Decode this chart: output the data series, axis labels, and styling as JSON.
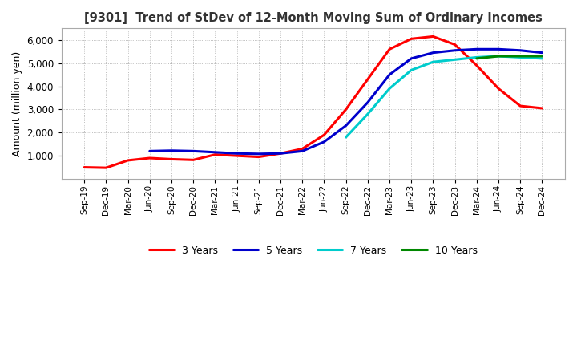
{
  "title": "[9301]  Trend of StDev of 12-Month Moving Sum of Ordinary Incomes",
  "ylabel": "Amount (million yen)",
  "ylim": [
    0,
    6500
  ],
  "yticks": [
    1000,
    2000,
    3000,
    4000,
    5000,
    6000
  ],
  "background_color": "#ffffff",
  "grid_color": "#aaaaaa",
  "x_labels": [
    "Sep-19",
    "Dec-19",
    "Mar-20",
    "Jun-20",
    "Sep-20",
    "Dec-20",
    "Mar-21",
    "Jun-21",
    "Sep-21",
    "Dec-21",
    "Mar-22",
    "Jun-22",
    "Sep-22",
    "Dec-22",
    "Mar-23",
    "Jun-23",
    "Sep-23",
    "Dec-23",
    "Mar-24",
    "Jun-24",
    "Sep-24",
    "Dec-24"
  ],
  "series": {
    "3 Years": {
      "color": "#ff0000",
      "values": [
        500,
        480,
        800,
        900,
        850,
        820,
        1050,
        1000,
        950,
        1100,
        1300,
        1900,
        3000,
        4300,
        5600,
        6050,
        6150,
        5800,
        4900,
        3900,
        3150,
        3050
      ]
    },
    "5 Years": {
      "color": "#0000cc",
      "values": [
        null,
        null,
        null,
        1200,
        1220,
        1200,
        1150,
        1100,
        1080,
        1100,
        1200,
        1600,
        2300,
        3300,
        4500,
        5200,
        5450,
        5550,
        5600,
        5600,
        5550,
        5450
      ]
    },
    "7 Years": {
      "color": "#00cccc",
      "values": [
        null,
        null,
        null,
        null,
        null,
        null,
        null,
        null,
        null,
        null,
        null,
        null,
        1800,
        2800,
        3900,
        4700,
        5050,
        5150,
        5250,
        5300,
        5250,
        5200
      ]
    },
    "10 Years": {
      "color": "#008800",
      "values": [
        null,
        null,
        null,
        null,
        null,
        null,
        null,
        null,
        null,
        null,
        null,
        null,
        null,
        null,
        null,
        null,
        null,
        null,
        5200,
        5300,
        5300,
        5300
      ]
    }
  }
}
